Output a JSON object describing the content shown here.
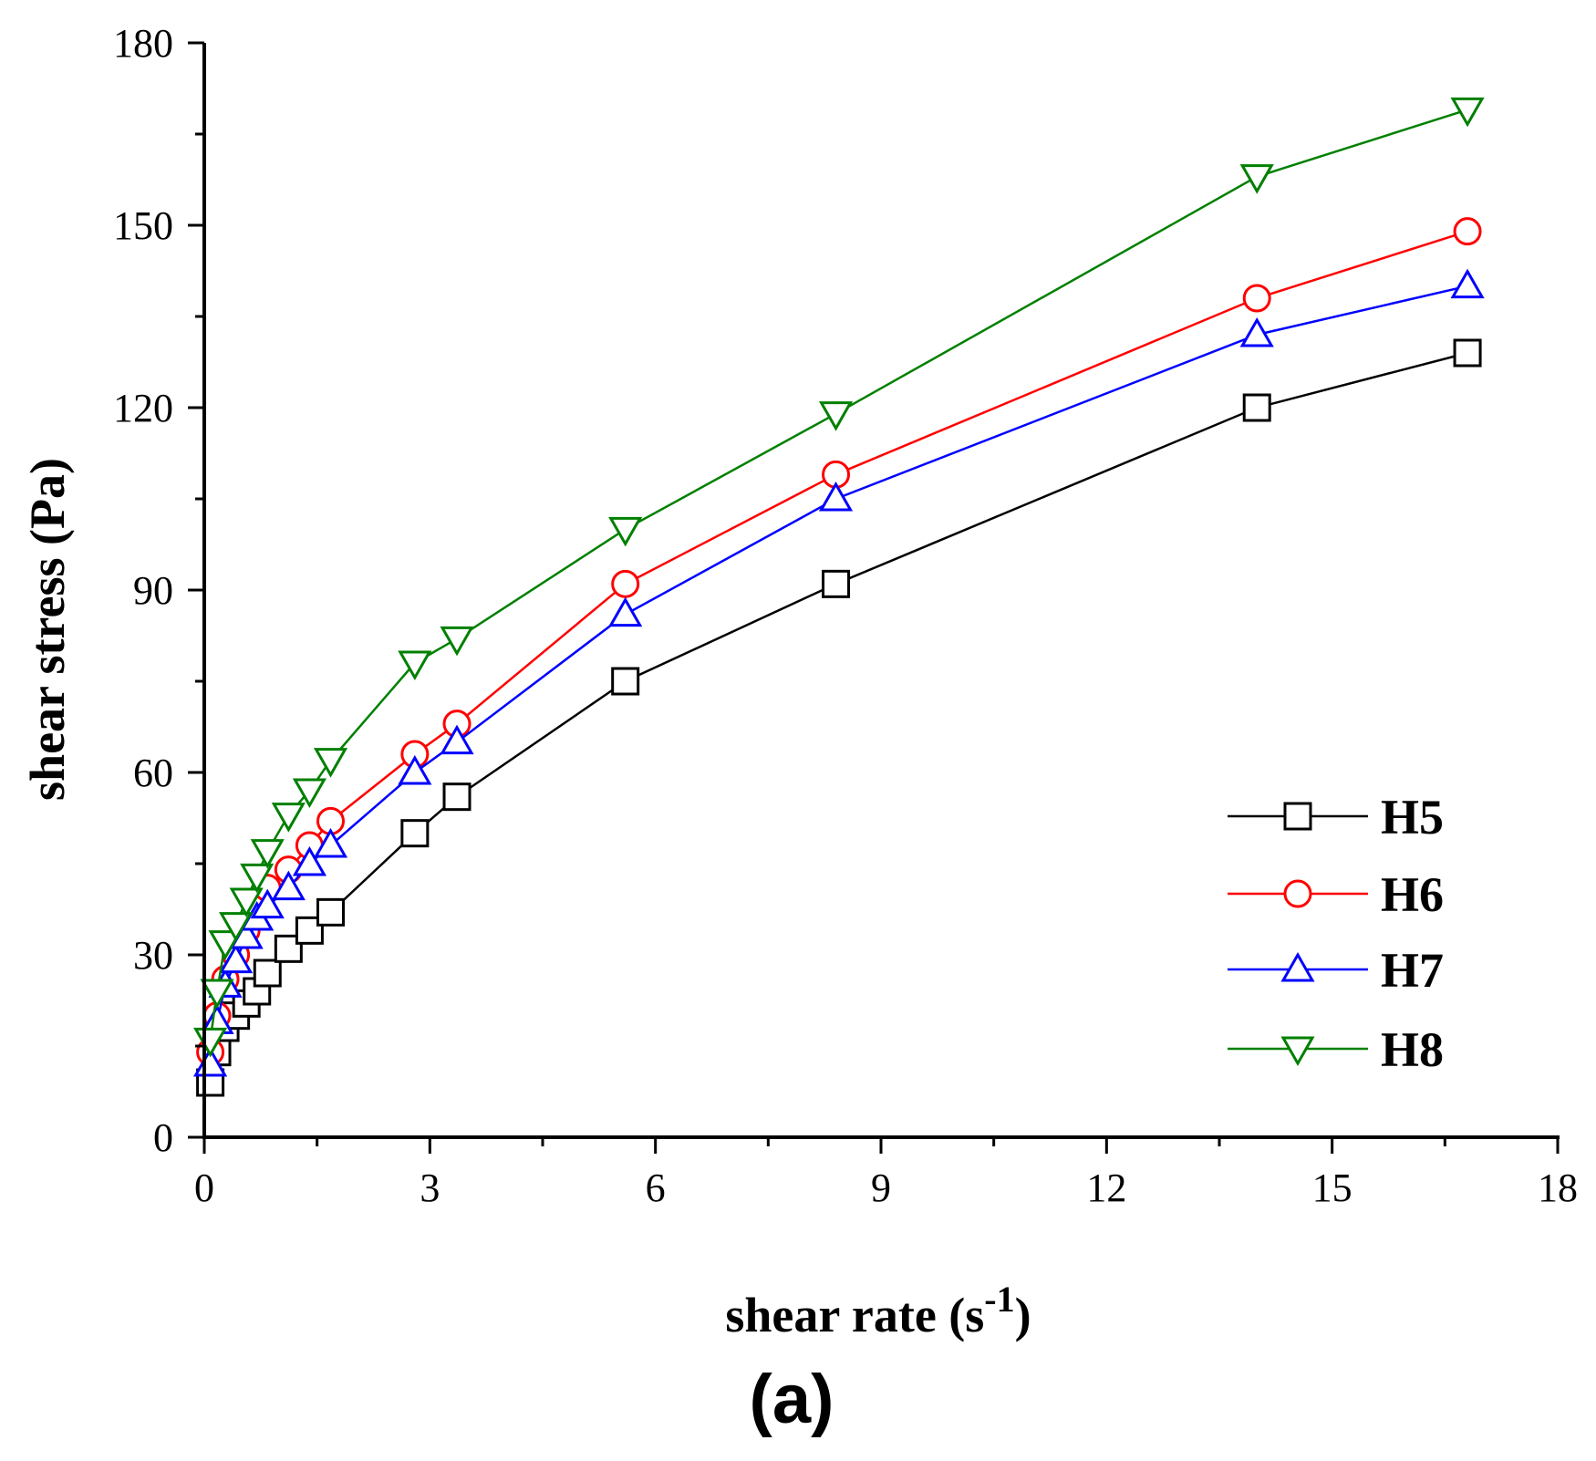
{
  "chart_data": {
    "type": "line",
    "title": "",
    "panel_label": "(a)",
    "xlabel": {
      "main": "shear rate (s",
      "superscript": "-1",
      "close": ")"
    },
    "ylabel": "shear stress (Pa)",
    "xlim": [
      0,
      18
    ],
    "ylim": [
      0,
      180
    ],
    "x_ticks": [
      0,
      3,
      6,
      9,
      12,
      15,
      18
    ],
    "x_tick_labels": [
      "0",
      "3",
      "6",
      "9",
      "12",
      "15",
      "18"
    ],
    "x_minor_ticks": [
      1.5,
      4.5,
      7.5,
      10.5,
      13.5,
      16.5
    ],
    "y_ticks": [
      0,
      30,
      60,
      90,
      120,
      150,
      180
    ],
    "y_tick_labels": [
      "0",
      "30",
      "60",
      "90",
      "120",
      "150",
      "180"
    ],
    "y_minor_ticks": [
      15,
      45,
      75,
      105,
      135,
      165
    ],
    "grid": false,
    "legend_position": "lower-right",
    "series": [
      {
        "name": "H5",
        "color": "#000000",
        "marker": "square",
        "x": [
          0.08,
          0.17,
          0.28,
          0.42,
          0.56,
          0.7,
          0.84,
          1.12,
          1.4,
          1.68,
          2.8,
          3.36,
          5.6,
          8.4,
          14.0,
          16.8
        ],
        "y": [
          9,
          14,
          18,
          20,
          22,
          24,
          27,
          31,
          34,
          37,
          50,
          56,
          75,
          91,
          120,
          129
        ]
      },
      {
        "name": "H6",
        "color": "#ff0000",
        "marker": "circle",
        "x": [
          0.08,
          0.17,
          0.28,
          0.42,
          0.56,
          0.7,
          0.84,
          1.12,
          1.4,
          1.68,
          2.8,
          3.36,
          5.6,
          8.4,
          14.0,
          16.8
        ],
        "y": [
          14,
          20,
          26,
          30,
          34,
          38,
          41,
          44,
          48,
          52,
          63,
          68,
          91,
          109,
          138,
          149
        ]
      },
      {
        "name": "H7",
        "color": "#0000ff",
        "marker": "triangle-up",
        "x": [
          0.08,
          0.17,
          0.28,
          0.42,
          0.56,
          0.7,
          0.84,
          1.12,
          1.4,
          1.68,
          2.8,
          3.36,
          5.6,
          8.4,
          14.0,
          16.8
        ],
        "y": [
          12,
          19,
          25,
          29,
          33,
          36,
          38,
          41,
          45,
          48,
          60,
          65,
          86,
          105,
          132,
          140
        ]
      },
      {
        "name": "H8",
        "color": "#008000",
        "marker": "triangle-down",
        "x": [
          0.08,
          0.17,
          0.28,
          0.42,
          0.56,
          0.7,
          0.84,
          1.12,
          1.4,
          1.68,
          2.8,
          3.36,
          5.6,
          8.4,
          14.0,
          16.8
        ],
        "y": [
          16,
          24,
          32,
          35,
          39,
          43,
          47,
          53,
          57,
          62,
          78,
          82,
          100,
          119,
          158,
          169
        ]
      }
    ]
  }
}
